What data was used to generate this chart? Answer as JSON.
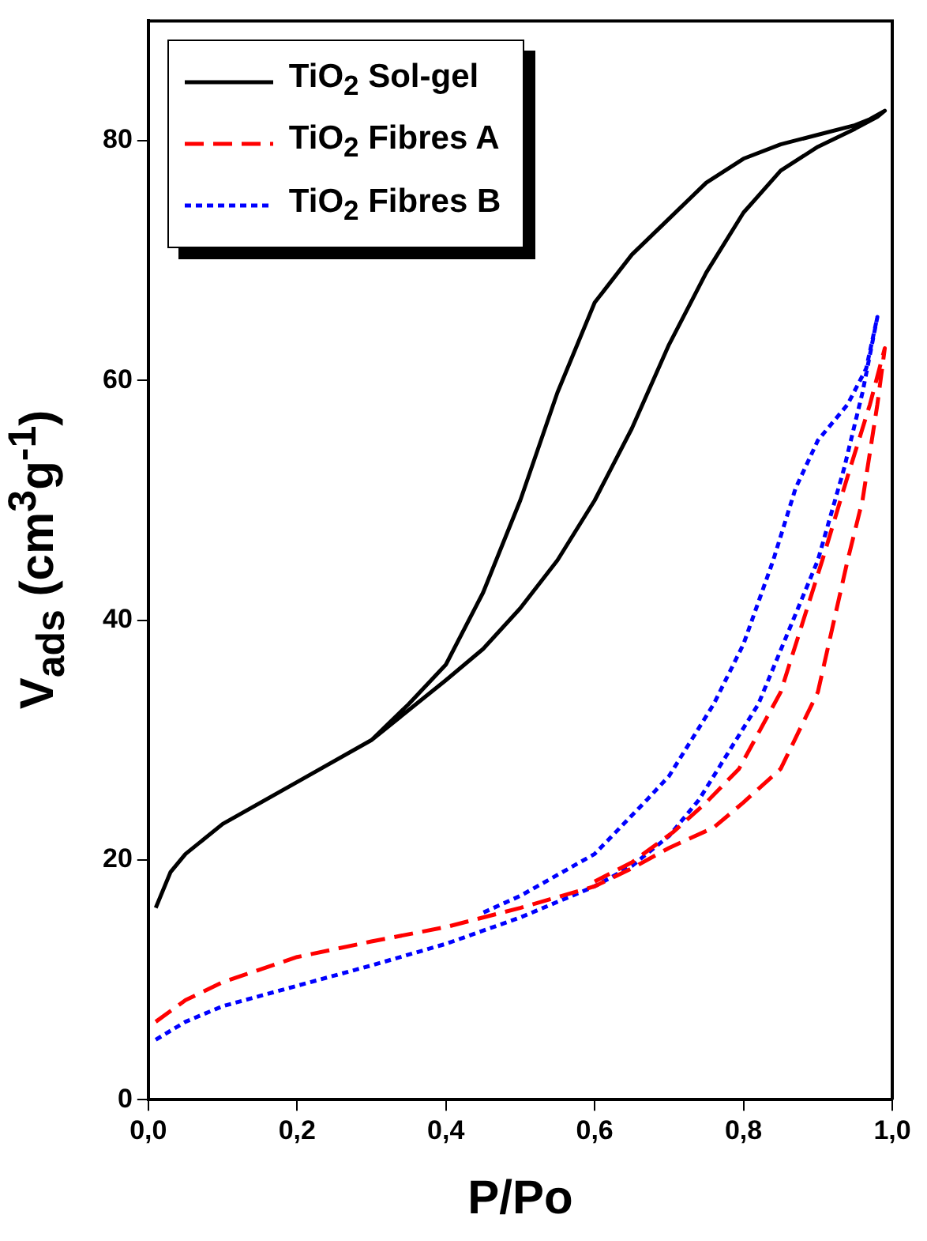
{
  "chart_data": {
    "type": "line",
    "xlabel": "P/Po",
    "ylabel": "V$_{ads}$ (cm$^{3}$g$^{-1}$)",
    "xlim": [
      0,
      1
    ],
    "ylim": [
      0,
      90
    ],
    "xticks": [
      {
        "value": 0,
        "label": "0,0"
      },
      {
        "value": 0.2,
        "label": "0,2"
      },
      {
        "value": 0.4,
        "label": "0,4"
      },
      {
        "value": 0.6,
        "label": "0,6"
      },
      {
        "value": 0.8,
        "label": "0,8"
      },
      {
        "value": 1,
        "label": "1,0"
      }
    ],
    "yticks": [
      0,
      20,
      40,
      60,
      80
    ],
    "grid": false,
    "legend": "top left",
    "marker": "none",
    "series": [
      {
        "name": "TiO$_{2}$ Sol-gel",
        "color": "#000000",
        "line_style": "solid",
        "x": [
          0.01,
          0.03,
          0.05,
          0.1,
          0.2,
          0.3,
          0.4,
          0.45,
          0.5,
          0.55,
          0.6,
          0.65,
          0.7,
          0.75,
          0.8,
          0.85,
          0.9,
          0.95,
          0.98,
          0.99,
          0.97,
          0.95,
          0.9,
          0.85,
          0.8,
          0.75,
          0.7,
          0.65,
          0.6,
          0.55,
          0.5,
          0.45,
          0.4,
          0.35,
          0.3
        ],
        "values": [
          16,
          19,
          20.5,
          23,
          26.5,
          30,
          35,
          37.6,
          41,
          45,
          50,
          56,
          63,
          69,
          74,
          77.5,
          79.5,
          81,
          82,
          82.5,
          81.8,
          81.3,
          80.5,
          79.7,
          78.5,
          76.5,
          73.5,
          70.5,
          66.5,
          59,
          50,
          42.3,
          36.3,
          33,
          30
        ]
      },
      {
        "name": "TiO$_{2}$ Fibres A",
        "color": "#ff0000",
        "line_style": "dashed",
        "x": [
          0.01,
          0.05,
          0.1,
          0.2,
          0.3,
          0.4,
          0.5,
          0.6,
          0.65,
          0.7,
          0.76,
          0.8,
          0.85,
          0.9,
          0.94,
          0.96,
          0.98,
          0.99,
          0.97,
          0.94,
          0.906,
          0.85,
          0.794,
          0.75,
          0.705,
          0.65,
          0.6
        ],
        "values": [
          6.5,
          8.3,
          9.8,
          11.9,
          13.2,
          14.4,
          16,
          17.8,
          19.3,
          21,
          22.7,
          24.8,
          27.6,
          34,
          45,
          50,
          58,
          62.7,
          58,
          52,
          45,
          34,
          27.6,
          24.8,
          22.3,
          19.8,
          18.2
        ]
      },
      {
        "name": "TiO$_{2}$ Fibres B",
        "color": "#0000ff",
        "line_style": "dotted",
        "x": [
          0.01,
          0.05,
          0.1,
          0.2,
          0.3,
          0.4,
          0.5,
          0.6,
          0.65,
          0.7,
          0.74,
          0.82,
          0.9,
          0.935,
          0.96,
          0.98,
          0.965,
          0.94,
          0.9,
          0.87,
          0.84,
          0.8,
          0.76,
          0.7,
          0.67,
          0.6,
          0.5,
          0.45
        ],
        "values": [
          5,
          6.5,
          7.8,
          9.5,
          11.2,
          13,
          15.2,
          17.8,
          19.5,
          22,
          25,
          33,
          45,
          52.6,
          59,
          65.3,
          61,
          58,
          55,
          51,
          45,
          38,
          33,
          27,
          25,
          20.5,
          17,
          15.6
        ]
      }
    ]
  }
}
